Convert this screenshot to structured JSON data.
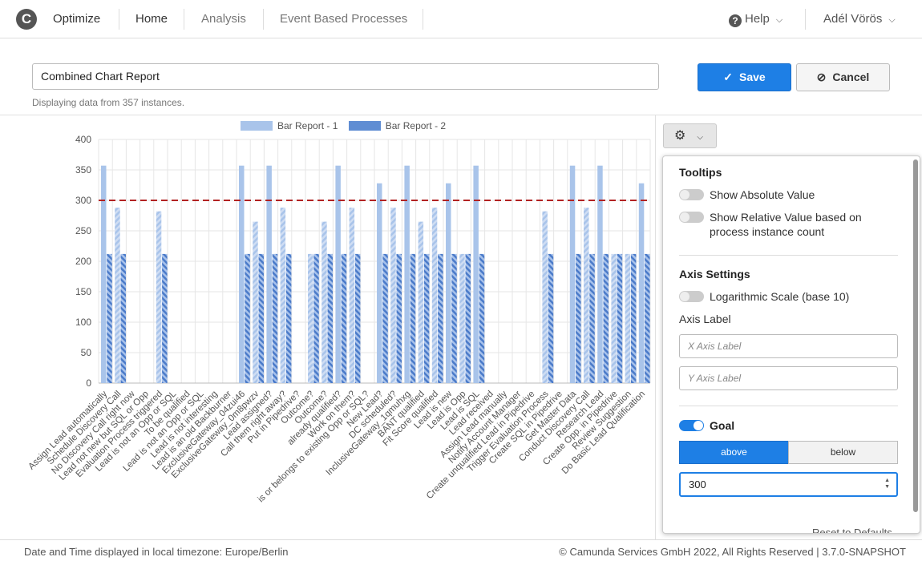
{
  "header": {
    "logo": "C",
    "app_name": "Optimize",
    "nav": [
      "Home",
      "Analysis",
      "Event Based Processes"
    ],
    "help": "Help",
    "user": "Adél Vörös"
  },
  "report": {
    "name": "Combined Chart Report",
    "meta": "Displaying data from 357 instances.",
    "save_label": "Save",
    "cancel_label": "Cancel"
  },
  "panel": {
    "tooltips_title": "Tooltips",
    "show_absolute": "Show Absolute Value",
    "show_relative": "Show Relative Value based on process instance count",
    "axis_title": "Axis Settings",
    "log_scale": "Logarithmic Scale (base 10)",
    "axis_label": "Axis Label",
    "x_placeholder": "X Axis Label",
    "y_placeholder": "Y Axis Label",
    "goal_title": "Goal",
    "goal_enabled": true,
    "above": "above",
    "below": "below",
    "goal_value": "300",
    "reset": "Reset to Defaults"
  },
  "footer": {
    "left": "Date and Time displayed in local timezone: Europe/Berlin",
    "right": "© Camunda Services GmbH 2022, All Rights Reserved | 3.7.0-SNAPSHOT"
  },
  "colors": {
    "series1": "#a9c4ea",
    "series2": "#5f8dd3",
    "goal_line": "#b22222",
    "accent": "#1e7fe5"
  },
  "chart_data": {
    "type": "bar",
    "ylim": [
      0,
      400
    ],
    "yticks": [
      0,
      50,
      100,
      150,
      200,
      250,
      300,
      350,
      400
    ],
    "goal": 300,
    "legend_position": "top",
    "categories": [
      "Assign Lead automatically",
      "Schedule Discovery Call",
      "No Discovery Call right now",
      "Lead not new but SQL or Opp",
      "Evaluation Process triggered",
      "Lead is not an Opp or SQL",
      "To be qualified",
      "Lead is not an Opp or SQL",
      "Lead is not interesting",
      "Lead is an old Backburner",
      "ExclusiveGateway_04zui46",
      "ExclusiveGateway_0m8pwzv",
      "Lead assigned?",
      "Call them right away?",
      "Put in Pipedrive?",
      "Outcome?",
      "Outcome?",
      "already qualified?",
      "Work on them?",
      "is or belongs to existing Opp or SQL?",
      "New Lead?",
      "DC scheduled?",
      "InclusiveGateway_1qmuhxg",
      "BANT qualified",
      "Fit Score qualified",
      "Lead is new",
      "Lead is Opp",
      "Lead is SQL",
      "Lead received",
      "Assign Lead manually",
      "Notify Account Manager",
      "Create unqualified Lead in Pipedrive",
      "Trigger Evaluation Process",
      "Create SQL in Pipedrive",
      "Get Master Data",
      "Conduct Discovery Call",
      "Research Lead",
      "Create Opp. in Pipedrive",
      "Review Suggestion",
      "Do Basic Lead Qualification"
    ],
    "series": [
      {
        "name": "Bar Report - 1",
        "values": [
          357,
          288,
          0,
          0,
          282,
          0,
          0,
          0,
          0,
          0,
          357,
          265,
          357,
          288,
          0,
          212,
          265,
          357,
          288,
          0,
          328,
          288,
          357,
          265,
          288,
          328,
          212,
          357,
          0,
          0,
          0,
          0,
          282,
          0,
          357,
          288,
          357,
          212,
          212,
          328
        ],
        "hatched": [
          false,
          true,
          false,
          false,
          true,
          false,
          false,
          false,
          false,
          false,
          false,
          true,
          false,
          true,
          false,
          true,
          true,
          false,
          true,
          false,
          false,
          true,
          false,
          true,
          true,
          false,
          true,
          false,
          false,
          false,
          false,
          false,
          true,
          false,
          false,
          true,
          false,
          true,
          true,
          false
        ]
      },
      {
        "name": "Bar Report - 2",
        "values": [
          212,
          212,
          0,
          0,
          212,
          0,
          0,
          0,
          0,
          0,
          212,
          212,
          212,
          212,
          0,
          212,
          212,
          212,
          212,
          0,
          212,
          212,
          212,
          212,
          212,
          212,
          212,
          212,
          0,
          0,
          0,
          0,
          212,
          0,
          212,
          212,
          212,
          212,
          212,
          212
        ],
        "hatched": [
          true,
          true,
          false,
          false,
          true,
          false,
          false,
          false,
          false,
          false,
          true,
          true,
          true,
          true,
          false,
          true,
          true,
          true,
          true,
          false,
          true,
          true,
          true,
          true,
          true,
          true,
          true,
          true,
          false,
          false,
          false,
          false,
          true,
          false,
          true,
          true,
          true,
          true,
          true,
          true
        ]
      }
    ]
  }
}
